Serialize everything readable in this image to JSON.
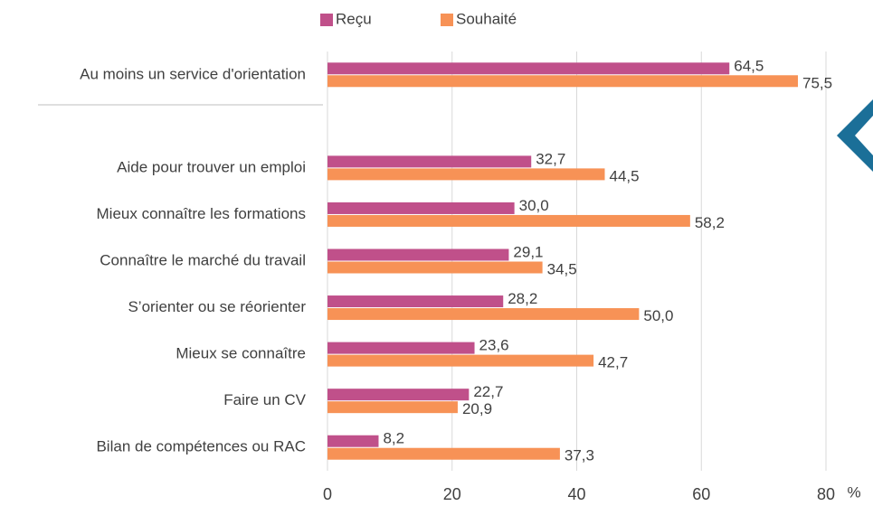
{
  "chart_data": {
    "type": "bar",
    "orientation": "horizontal",
    "categories": [
      "Au moins un service d'orientation",
      null,
      "Aide pour trouver un emploi",
      "Mieux connaître les formations",
      "Connaître le marché du travail",
      "S’orienter ou se réorienter",
      "Mieux se connaître",
      "Faire un CV",
      "Bilan de compétences ou RAC"
    ],
    "series": [
      {
        "name": "Reçu",
        "color": "#c0508a",
        "values": [
          64.5,
          null,
          32.7,
          30.0,
          29.1,
          28.2,
          23.6,
          22.7,
          8.2
        ],
        "value_labels": [
          "64,5",
          null,
          "32,7",
          "30,0",
          "29,1",
          "28,2",
          "23,6",
          "22,7",
          "8,2"
        ]
      },
      {
        "name": "Souhaité",
        "color": "#f79256",
        "values": [
          75.5,
          null,
          44.5,
          58.2,
          34.5,
          50.0,
          42.7,
          20.9,
          37.3
        ],
        "value_labels": [
          "75,5",
          null,
          "44,5",
          "58,2",
          "34,5",
          "50,0",
          "42,7",
          "20,9",
          "37,3"
        ]
      }
    ],
    "x_label": "%",
    "xlim": [
      0,
      80
    ],
    "xticks": [
      0,
      20,
      40,
      60,
      80
    ],
    "grid": true,
    "legend": "top"
  }
}
